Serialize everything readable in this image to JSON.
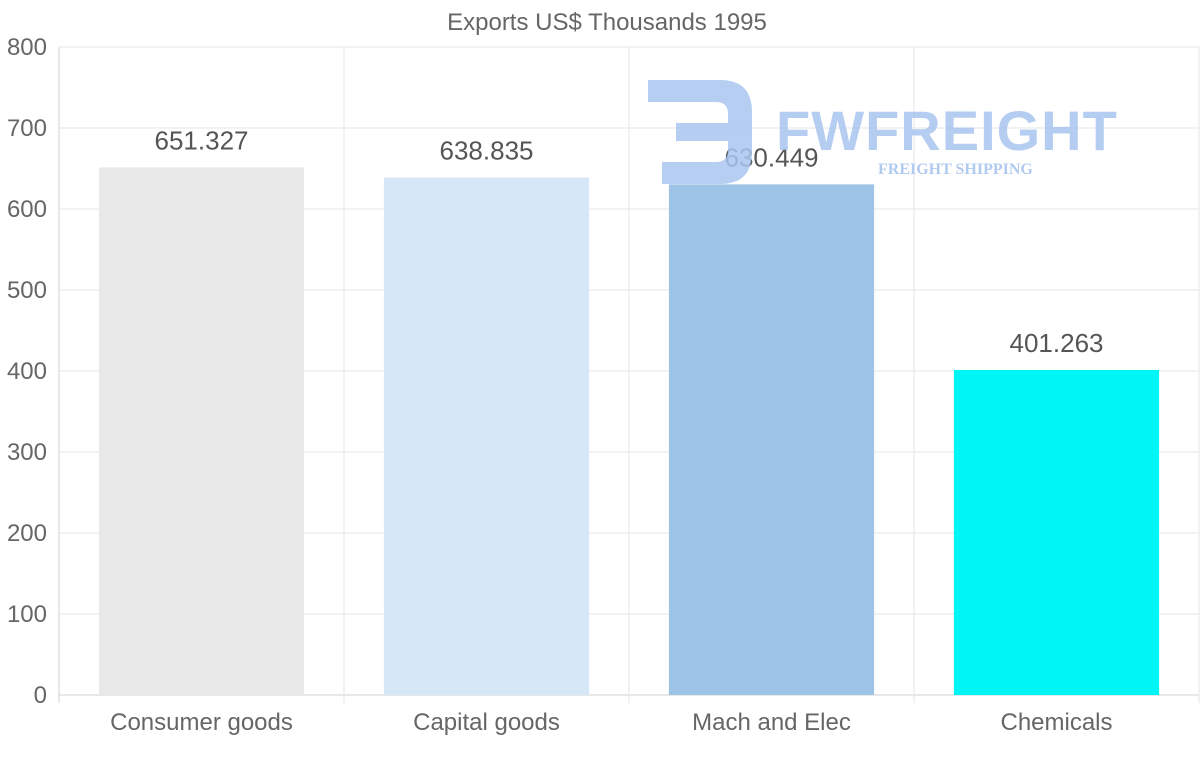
{
  "chart_data": {
    "type": "bar",
    "title": "Exports US$ Thousands 1995",
    "categories": [
      "Consumer goods",
      "Capital goods",
      "Mach and Elec",
      "Chemicals"
    ],
    "values": [
      651.327,
      638.835,
      630.449,
      401.263
    ],
    "value_labels": [
      "651.327",
      "638.835",
      "630.449",
      "401.263"
    ],
    "colors": [
      "#e8e8e8",
      "#d6e7f8",
      "#9dc4e7",
      "#00f6f6"
    ],
    "ylim": [
      0,
      800
    ],
    "yticks": [
      "0",
      "100",
      "200",
      "300",
      "400",
      "500",
      "600",
      "700",
      "800"
    ],
    "xlabel": "",
    "ylabel": "",
    "grid": true
  },
  "watermark": {
    "brand": "FWFREIGHT",
    "tagline": "FREIGHT SHIPPING",
    "color": "#a9c5ef"
  }
}
